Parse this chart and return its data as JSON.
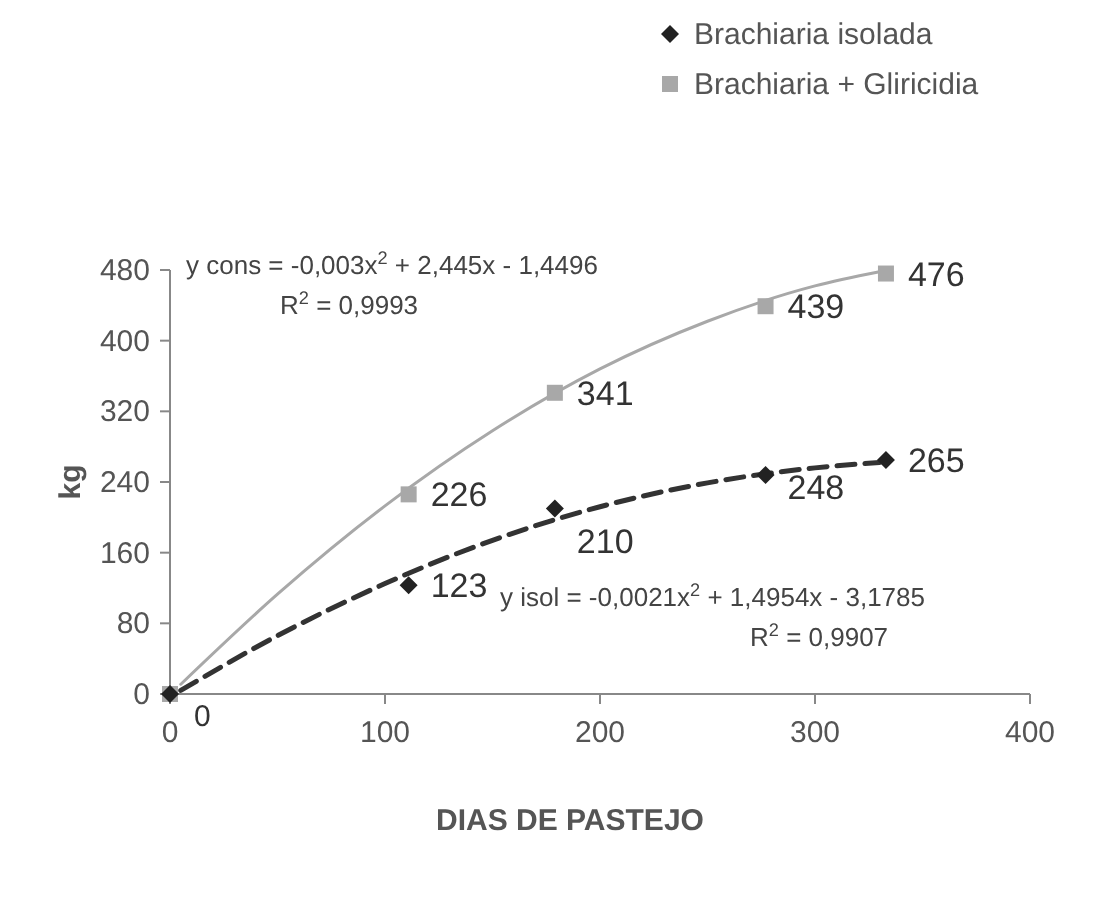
{
  "chart_data": {
    "type": "scatter",
    "xlabel": "DIAS DE PASTEJO",
    "ylabel": "kg",
    "xlim": [
      0,
      400
    ],
    "xticks": [
      0,
      100,
      200,
      300,
      400
    ],
    "ylim": [
      0,
      480
    ],
    "yticks": [
      0,
      80,
      160,
      240,
      320,
      400,
      480
    ],
    "grid": false,
    "legend": "top right",
    "series": [
      {
        "name": "Brachiaria isolada",
        "color": "#222222",
        "marker": "diamond",
        "x": [
          0,
          111,
          179,
          277,
          333
        ],
        "values": [
          0,
          123,
          210,
          248,
          265
        ],
        "value_labels": [
          null,
          "123",
          "210",
          "248",
          "265"
        ]
      },
      {
        "name": "Brachiaria + Gliricidia",
        "color": "#a8a8a8",
        "marker": "square",
        "x": [
          0,
          111,
          179,
          277,
          333
        ],
        "values": [
          0,
          226,
          341,
          439,
          476
        ],
        "value_labels": [
          "0",
          "226",
          "341",
          "439",
          "476"
        ]
      },
      {
        "type": "line",
        "color": "#333333",
        "line_style": "dashed",
        "x": [
          5,
          50,
          100,
          150,
          200,
          250,
          300,
          330
        ],
        "values": [
          4,
          66,
          125,
          174,
          212,
          239,
          256,
          262
        ]
      },
      {
        "type": "line",
        "color": "#a8a8a8",
        "line_style": "solid",
        "x": [
          5,
          50,
          100,
          150,
          200,
          250,
          300,
          330
        ],
        "values": [
          11,
          113,
          213,
          298,
          368,
          422,
          462,
          478
        ]
      }
    ],
    "annotations": [
      "y cons = -0,003x$^{2}$ + 2,445x - 1,4496",
      "R$^{2}$ = 0,9993",
      "y isol = -0,0021x$^{2}$ + 1,4954x - 3,1785",
      "R$^{2}$ = 0,9907"
    ]
  }
}
